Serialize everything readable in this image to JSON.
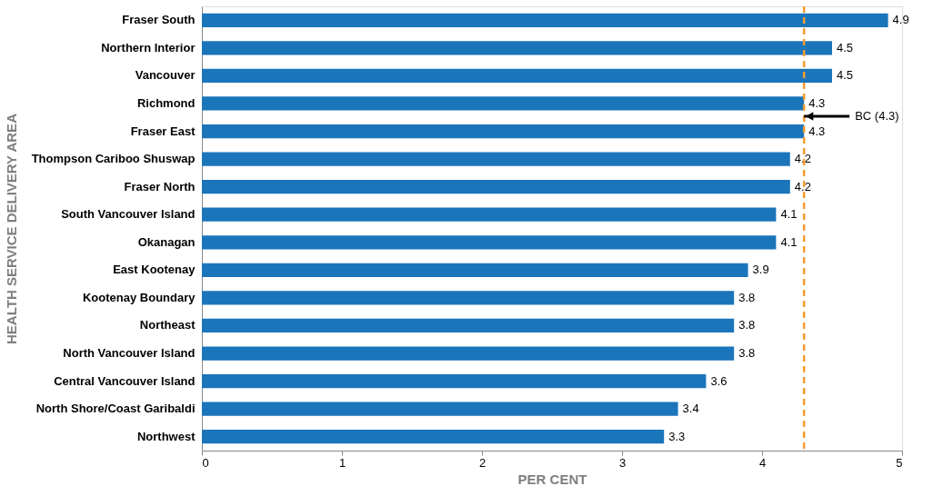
{
  "chart_data": {
    "type": "bar",
    "orientation": "horizontal",
    "xlabel": "PER CENT",
    "ylabel": "HEALTH SERVICE DELIVERY AREA",
    "categories": [
      "Fraser South",
      "Northern Interior",
      "Vancouver",
      "Richmond",
      "Fraser East",
      "Thompson Cariboo Shuswap",
      "Fraser North",
      "South Vancouver Island",
      "Okanagan",
      "East Kootenay",
      "Kootenay Boundary",
      "Northeast",
      "North Vancouver Island",
      "Central Vancouver Island",
      "North Shore/Coast Garibaldi",
      "Northwest"
    ],
    "values": [
      4.9,
      4.5,
      4.5,
      4.3,
      4.3,
      4.2,
      4.2,
      4.1,
      4.1,
      3.9,
      3.8,
      3.8,
      3.8,
      3.6,
      3.4,
      3.3
    ],
    "color": "#1b75bb",
    "xlim": [
      0,
      5
    ],
    "xticks": [
      0,
      1,
      2,
      3,
      4,
      5
    ],
    "data_labels": true,
    "grid": false,
    "ref_lines": [
      {
        "axis": "x",
        "value": 4.3,
        "label": "BC (4.3)",
        "color": "#f39c32",
        "line_style": "dashed"
      }
    ]
  }
}
